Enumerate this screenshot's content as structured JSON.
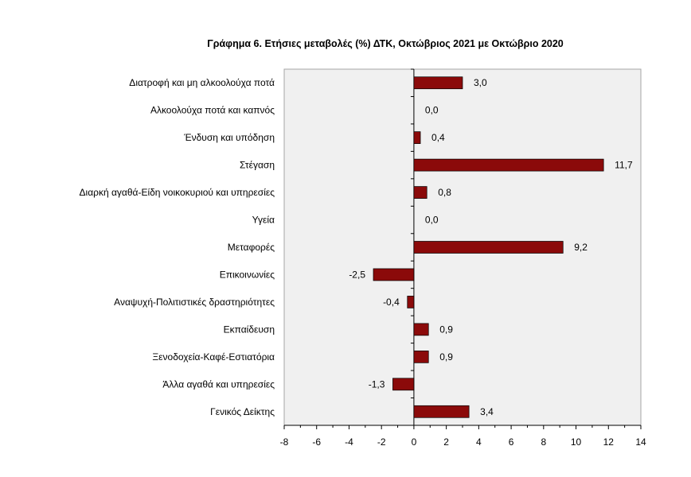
{
  "chart_data": {
    "type": "bar",
    "orientation": "horizontal",
    "title": "Γράφημα 6. Ετήσιες μεταβολές (%) ΔΤΚ, Οκτώβριος 2021 με Οκτώβριο 2020",
    "categories": [
      "Διατροφή και μη αλκοολούχα ποτά",
      "Αλκοολούχα ποτά και καπνός",
      "Ένδυση και υπόδηση",
      "Στέγαση",
      "Διαρκή αγαθά-Είδη νοικοκυριού και υπηρεσίες",
      "Υγεία",
      "Μεταφορές",
      "Επικοινωνίες",
      "Αναψυχή-Πολιτιστικές δραστηριότητες",
      "Εκπαίδευση",
      "Ξενοδοχεία-Καφέ-Εστιατόρια",
      "Άλλα αγαθά και υπηρεσίες",
      "Γενικός Δείκτης"
    ],
    "values": [
      3.0,
      0.0,
      0.4,
      11.7,
      0.8,
      0.0,
      9.2,
      -2.5,
      -0.4,
      0.9,
      0.9,
      -1.3,
      3.4
    ],
    "data_labels": [
      "3,0",
      "0,0",
      "0,4",
      "11,7",
      "0,8",
      "0,0",
      "9,2",
      "-2,5",
      "-0,4",
      "0,9",
      "0,9",
      "-1,3",
      "3,4"
    ],
    "xlim": [
      -8,
      14
    ],
    "xticks": [
      -8,
      -6,
      -4,
      -2,
      0,
      2,
      4,
      6,
      8,
      10,
      12,
      14
    ],
    "xtick_labels": [
      "-8",
      "-6",
      "-4",
      "-2",
      "0",
      "2",
      "4",
      "6",
      "8",
      "10",
      "12",
      "14"
    ],
    "xlabel": "",
    "ylabel": "",
    "grid": false,
    "legend": "none",
    "colors": {
      "bar": "#8b0a0a",
      "plot_bg": "#f0f0f0",
      "border": "#a6a6a6"
    }
  }
}
